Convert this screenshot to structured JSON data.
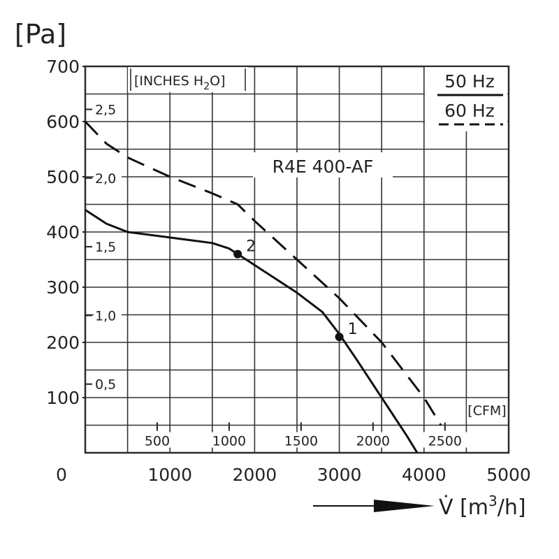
{
  "chart_data": {
    "type": "line",
    "title": "R4E 400-AF",
    "ylabel": "[Pa]",
    "xlabel_symbol": "V̇",
    "xlabel_unit_open": "[m",
    "xlabel_unit_exp": "3",
    "xlabel_unit_close": "/h]",
    "origin_label": "0",
    "xlim": [
      0,
      5000
    ],
    "ylim": [
      0,
      700
    ],
    "x_ticks": [
      1000,
      2000,
      3000,
      4000,
      5000
    ],
    "y_ticks": [
      100,
      200,
      300,
      400,
      500,
      600,
      700
    ],
    "grid": true,
    "secondary_y": {
      "label": "[INCHES H",
      "label_sub": "2",
      "label_end": "O]",
      "ticks": [
        {
          "label": "0,5",
          "value": 0.5
        },
        {
          "label": "1,0",
          "value": 1.0
        },
        {
          "label": "1,5",
          "value": 1.5
        },
        {
          "label": "2,0",
          "value": 2.0
        },
        {
          "label": "2,5",
          "value": 2.5
        }
      ]
    },
    "secondary_x": {
      "label": "[CFM]",
      "ticks": [
        {
          "label": "500",
          "value": 500
        },
        {
          "label": "1000",
          "value": 1000
        },
        {
          "label": "1500",
          "value": 1500
        },
        {
          "label": "2000",
          "value": 2000
        },
        {
          "label": "2500",
          "value": 2500
        }
      ]
    },
    "legend": {
      "placement": "top-right"
    },
    "series": [
      {
        "name": "50 Hz",
        "style": "solid",
        "x": [
          0,
          250,
          500,
          1000,
          1500,
          1700,
          1800,
          2000,
          2500,
          2800,
          3000,
          3200,
          3500,
          3800,
          3920
        ],
        "y": [
          440,
          415,
          400,
          390,
          380,
          370,
          360,
          340,
          290,
          255,
          215,
          170,
          100,
          30,
          0
        ]
      },
      {
        "name": "60 Hz",
        "style": "dashed",
        "x": [
          0,
          250,
          500,
          1000,
          1500,
          1800,
          2000,
          2500,
          3000,
          3500,
          4000,
          4200
        ],
        "y": [
          600,
          560,
          535,
          500,
          470,
          450,
          420,
          350,
          280,
          200,
          100,
          50
        ]
      }
    ],
    "points": [
      {
        "label": "1",
        "x": 3000,
        "y": 210
      },
      {
        "label": "2",
        "x": 1800,
        "y": 360
      }
    ]
  }
}
